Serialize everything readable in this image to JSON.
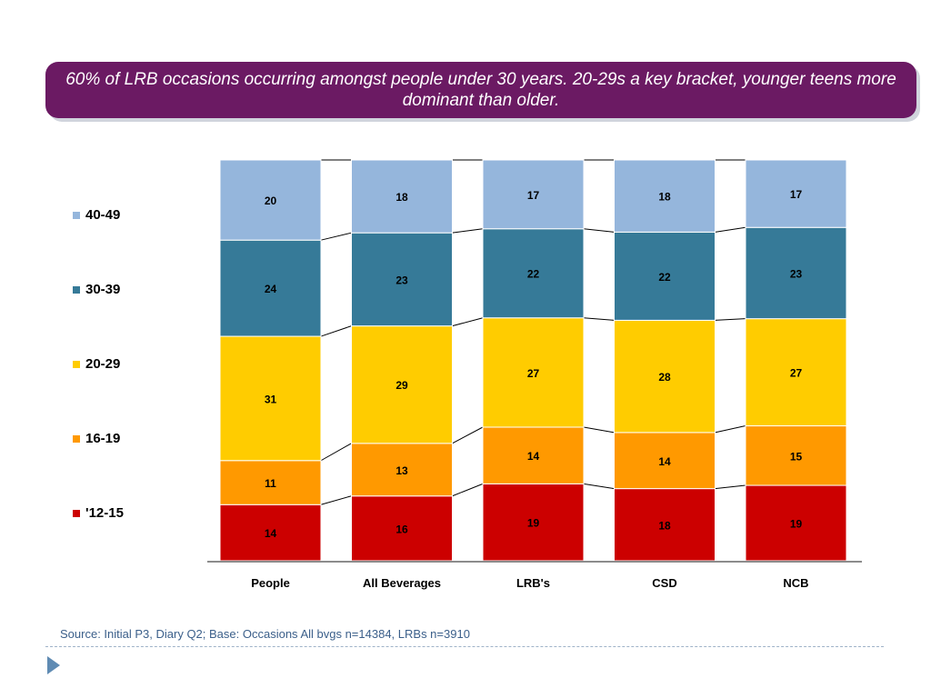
{
  "banner": {
    "title": "60% of LRB occasions occurring amongst people under 30 years. 20-29s a key bracket, younger teens more dominant than older."
  },
  "source": "Source: Initial P3, Diary Q2; Base:  Occasions All bvgs  n=14384, LRBs n=3910",
  "colors": {
    "banner": "#6b1a63",
    "40-49": "#95b6dc",
    "30-39": "#367a98",
    "20-29": "#ffcc00",
    "16-19": "#ff9900",
    "12-15": "#cc0000"
  },
  "legend": [
    {
      "label": "40-49",
      "color": "#95b6dc"
    },
    {
      "label": "30-39",
      "color": "#367a98"
    },
    {
      "label": "20-29",
      "color": "#ffcc00"
    },
    {
      "label": "16-19",
      "color": "#ff9900"
    },
    {
      "label": "'12-15",
      "color": "#cc0000"
    }
  ],
  "chart_data": {
    "type": "bar",
    "stacked": true,
    "percent_stacked": true,
    "categories": [
      "People",
      "All Beverages",
      "LRB's",
      "CSD",
      "NCB"
    ],
    "series": [
      {
        "name": "'12-15",
        "color": "#cc0000",
        "values": [
          14,
          16,
          19,
          18,
          19
        ]
      },
      {
        "name": "16-19",
        "color": "#ff9900",
        "values": [
          11,
          13,
          14,
          14,
          15
        ]
      },
      {
        "name": "20-29",
        "color": "#ffcc00",
        "values": [
          31,
          29,
          27,
          28,
          27
        ]
      },
      {
        "name": "30-39",
        "color": "#367a98",
        "values": [
          24,
          23,
          22,
          22,
          23
        ]
      },
      {
        "name": "40-49",
        "color": "#95b6dc",
        "values": [
          20,
          18,
          17,
          18,
          17
        ]
      }
    ],
    "legend_position": "left",
    "series_lines": true,
    "grid": false
  }
}
